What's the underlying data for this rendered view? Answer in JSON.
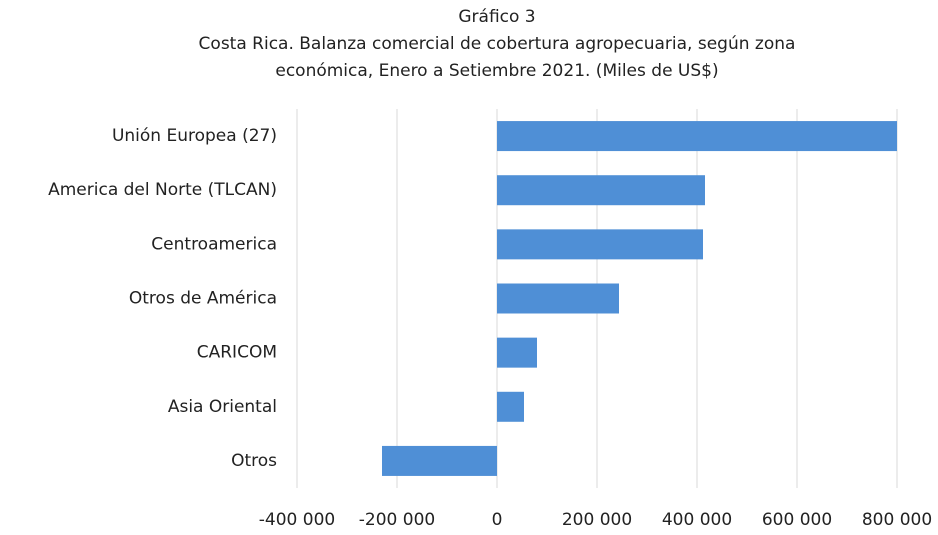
{
  "chart_data": {
    "type": "barh",
    "title": "Gráfico 3",
    "subtitle": [
      "Costa Rica. Balanza comercial de cobertura agropecuaria, según zona",
      "económica, Enero a Setiembre 2021. (Miles de US$)"
    ],
    "categories": [
      "Unión Europea (27)",
      "America del Norte (TLCAN)",
      "Centroamerica",
      "Otros de América",
      "CARICOM",
      "Asia Oriental",
      "Otros"
    ],
    "values": [
      800000,
      416000,
      412000,
      244000,
      80000,
      54000,
      -230000
    ],
    "color": "#4f8fd6",
    "xlim": [
      -400000,
      800000
    ],
    "xticks": [
      {
        "value": -400000,
        "label": "-400 000"
      },
      {
        "value": -200000,
        "label": "-200 000"
      },
      0,
      {
        "value": 200000,
        "label": "200 000"
      },
      {
        "value": 400000,
        "label": "400 000"
      },
      {
        "value": 600000,
        "label": "600 000"
      },
      {
        "value": 800000,
        "label": "800 000"
      }
    ],
    "grid": true
  }
}
